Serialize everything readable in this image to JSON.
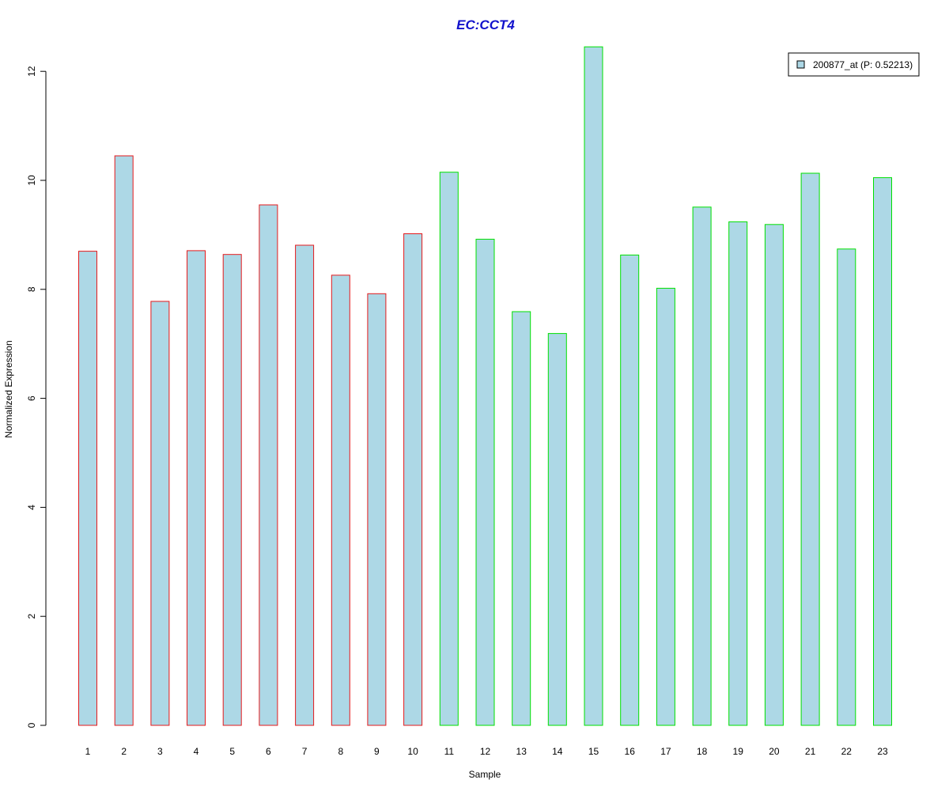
{
  "chart_data": {
    "type": "bar",
    "title": "EC:CCT4",
    "xlabel": "Sample",
    "ylabel": "Normalized Expression",
    "categories": [
      "1",
      "2",
      "3",
      "4",
      "5",
      "6",
      "7",
      "8",
      "9",
      "10",
      "11",
      "12",
      "13",
      "14",
      "15",
      "16",
      "17",
      "18",
      "19",
      "20",
      "21",
      "22",
      "23"
    ],
    "series": [
      {
        "name": "200877_at (P: 0.52213)",
        "values": [
          8.7,
          10.45,
          7.78,
          8.71,
          8.64,
          9.55,
          8.81,
          8.26,
          7.92,
          9.02,
          10.15,
          8.92,
          7.59,
          7.19,
          12.45,
          8.63,
          8.02,
          9.51,
          9.24,
          9.19,
          10.13,
          8.74,
          10.05
        ]
      }
    ],
    "groups": [
      {
        "samples": [
          1,
          10
        ],
        "border_color": "#e41a1c"
      },
      {
        "samples": [
          11,
          23
        ],
        "border_color": "#00e000"
      }
    ],
    "yticks": [
      0,
      2,
      4,
      6,
      8,
      10,
      12
    ],
    "ylim": [
      0,
      12.45
    ],
    "grid": false,
    "legend_position": "top-right",
    "colors": {
      "bar_fill": "#add8e6",
      "title": "#1111cc",
      "axis": "#000000",
      "legend_border": "#000000"
    }
  }
}
